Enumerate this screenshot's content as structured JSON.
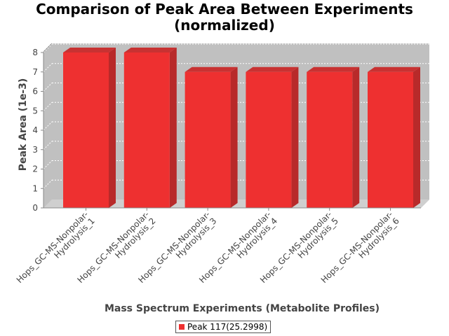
{
  "chart_data": {
    "type": "bar",
    "title_lines": [
      "Comparison of Peak Area Between Experiments",
      "(normalized)"
    ],
    "xlabel": "Mass Spectrum Experiments (Metabolite Profiles)",
    "ylabel": "Peak Area (1e-3)",
    "ylim": [
      0,
      8
    ],
    "yticks": [
      0,
      1,
      2,
      3,
      4,
      5,
      6,
      7,
      8
    ],
    "grid": true,
    "categories": [
      "Hops_GC-MS-Nonpolar-Hydrolysis_1",
      "Hops_GC-MS-Nonpolar-Hydrolysis_2",
      "Hops_GC-MS-Nonpolar-Hydrolysis_3",
      "Hops_GC-MS-Nonpolar-Hydrolysis_4",
      "Hops_GC-MS-Nonpolar-Hydrolysis_5",
      "Hops_GC-MS-Nonpolar-Hydrolysis_6"
    ],
    "category_label_lines": [
      [
        "Hops_GC-MS-Nonpolar-",
        "Hydrolysis_1"
      ],
      [
        "Hops_GC-MS-Nonpolar-",
        "Hydrolysis_2"
      ],
      [
        "Hops_GC-MS-Nonpolar-",
        "Hydrolysis_3"
      ],
      [
        "Hops_GC-MS-Nonpolar-",
        "Hydrolysis_4"
      ],
      [
        "Hops_GC-MS-Nonpolar-",
        "Hydrolysis_5"
      ],
      [
        "Hops_GC-MS-Nonpolar-",
        "Hydrolysis_6"
      ]
    ],
    "series": [
      {
        "name": "Peak 117(25.2998)",
        "values": [
          8,
          8,
          7,
          7,
          7,
          7
        ],
        "color": "#ee3030"
      }
    ],
    "legend_position": "bottom",
    "plot_background": "#c0c0c0"
  }
}
